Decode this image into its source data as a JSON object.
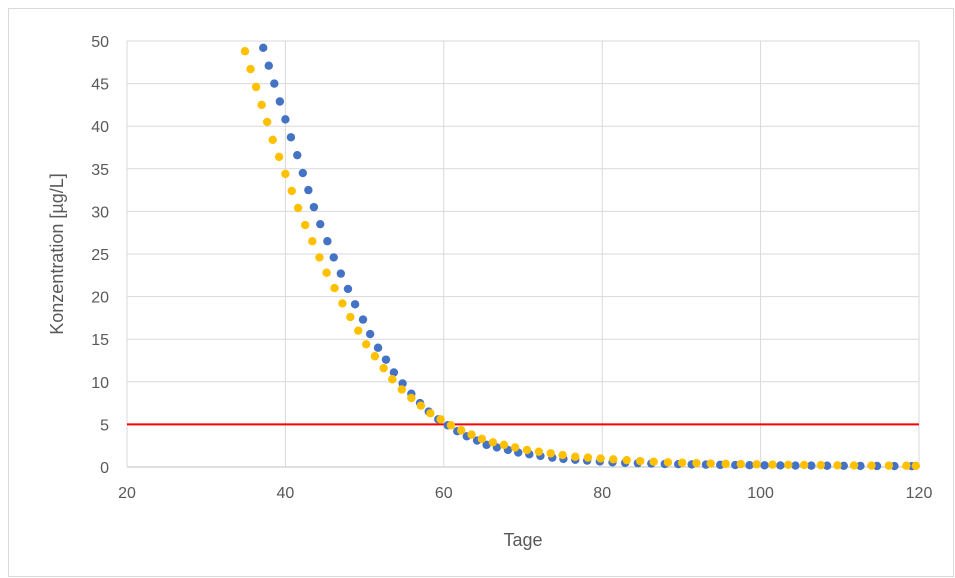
{
  "chart_data": {
    "type": "scatter",
    "title": "",
    "xlabel": "Tage",
    "ylabel": "Konzentration [µg/L]",
    "xlim": [
      20,
      120
    ],
    "ylim": [
      0,
      50
    ],
    "x_ticks": [
      20,
      40,
      60,
      80,
      100,
      120
    ],
    "y_ticks": [
      0,
      5,
      10,
      15,
      20,
      25,
      30,
      35,
      40,
      45,
      50
    ],
    "grid": true,
    "legend": "none",
    "reference_line": {
      "y": 5,
      "color": "#ff0000"
    },
    "series": [
      {
        "color": "#4472c4",
        "x": [
          37.2,
          37.9,
          38.6,
          39.3,
          40.0,
          40.7,
          41.5,
          42.2,
          42.9,
          43.6,
          44.4,
          45.3,
          46.1,
          47.0,
          47.9,
          48.8,
          49.8,
          50.7,
          51.7,
          52.7,
          53.7,
          54.8,
          55.9,
          57.0,
          58.1,
          59.3,
          60.5,
          61.7,
          62.9,
          64.2,
          65.4,
          66.7,
          68.1,
          69.4,
          70.8,
          72.2,
          73.7,
          75.1,
          76.6,
          78.1,
          79.7,
          81.3,
          82.9,
          84.5,
          86.2,
          87.9,
          89.6,
          91.3,
          93.1,
          94.9,
          96.8,
          98.6,
          100.5,
          102.5,
          104.4,
          106.4,
          108.4,
          110.5,
          112.6,
          114.7,
          116.9,
          119.1
        ],
        "y": [
          49.2,
          47.1,
          45.0,
          42.9,
          40.8,
          38.7,
          36.6,
          34.5,
          32.5,
          30.5,
          28.5,
          26.5,
          24.6,
          22.7,
          20.9,
          19.1,
          17.3,
          15.6,
          14.0,
          12.6,
          11.1,
          9.8,
          8.6,
          7.5,
          6.5,
          5.6,
          4.9,
          4.2,
          3.6,
          3.1,
          2.6,
          2.3,
          2.0,
          1.7,
          1.5,
          1.3,
          1.1,
          0.95,
          0.85,
          0.75,
          0.65,
          0.55,
          0.5,
          0.45,
          0.4,
          0.35,
          0.33,
          0.3,
          0.28,
          0.25,
          0.23,
          0.21,
          0.2,
          0.18,
          0.17,
          0.16,
          0.15,
          0.14,
          0.13,
          0.12,
          0.11,
          0.1
        ]
      },
      {
        "color": "#ffc000",
        "x": [
          34.9,
          35.6,
          36.3,
          37.0,
          37.7,
          38.4,
          39.2,
          40.0,
          40.8,
          41.6,
          42.5,
          43.4,
          44.3,
          45.2,
          46.2,
          47.2,
          48.2,
          49.2,
          50.2,
          51.3,
          52.4,
          53.5,
          54.7,
          55.9,
          57.1,
          58.3,
          59.6,
          60.9,
          62.2,
          63.5,
          64.8,
          66.2,
          67.6,
          69.0,
          70.5,
          72.0,
          73.5,
          75.0,
          76.6,
          78.2,
          79.8,
          81.4,
          83.1,
          84.8,
          86.5,
          88.3,
          90.1,
          91.9,
          93.7,
          95.6,
          97.5,
          99.5,
          101.5,
          103.5,
          105.5,
          107.6,
          109.7,
          111.8,
          114.0,
          116.2,
          118.4,
          119.6
        ],
        "y": [
          48.8,
          46.7,
          44.6,
          42.5,
          40.5,
          38.4,
          36.4,
          34.4,
          32.4,
          30.4,
          28.4,
          26.5,
          24.6,
          22.8,
          21.0,
          19.2,
          17.6,
          16.0,
          14.4,
          13.0,
          11.6,
          10.3,
          9.1,
          8.1,
          7.2,
          6.3,
          5.6,
          4.9,
          4.3,
          3.8,
          3.3,
          2.9,
          2.6,
          2.3,
          2.0,
          1.8,
          1.6,
          1.4,
          1.2,
          1.1,
          1.0,
          0.9,
          0.8,
          0.7,
          0.62,
          0.55,
          0.5,
          0.45,
          0.4,
          0.37,
          0.34,
          0.31,
          0.28,
          0.26,
          0.24,
          0.22,
          0.2,
          0.18,
          0.17,
          0.16,
          0.15,
          0.14
        ]
      }
    ]
  }
}
